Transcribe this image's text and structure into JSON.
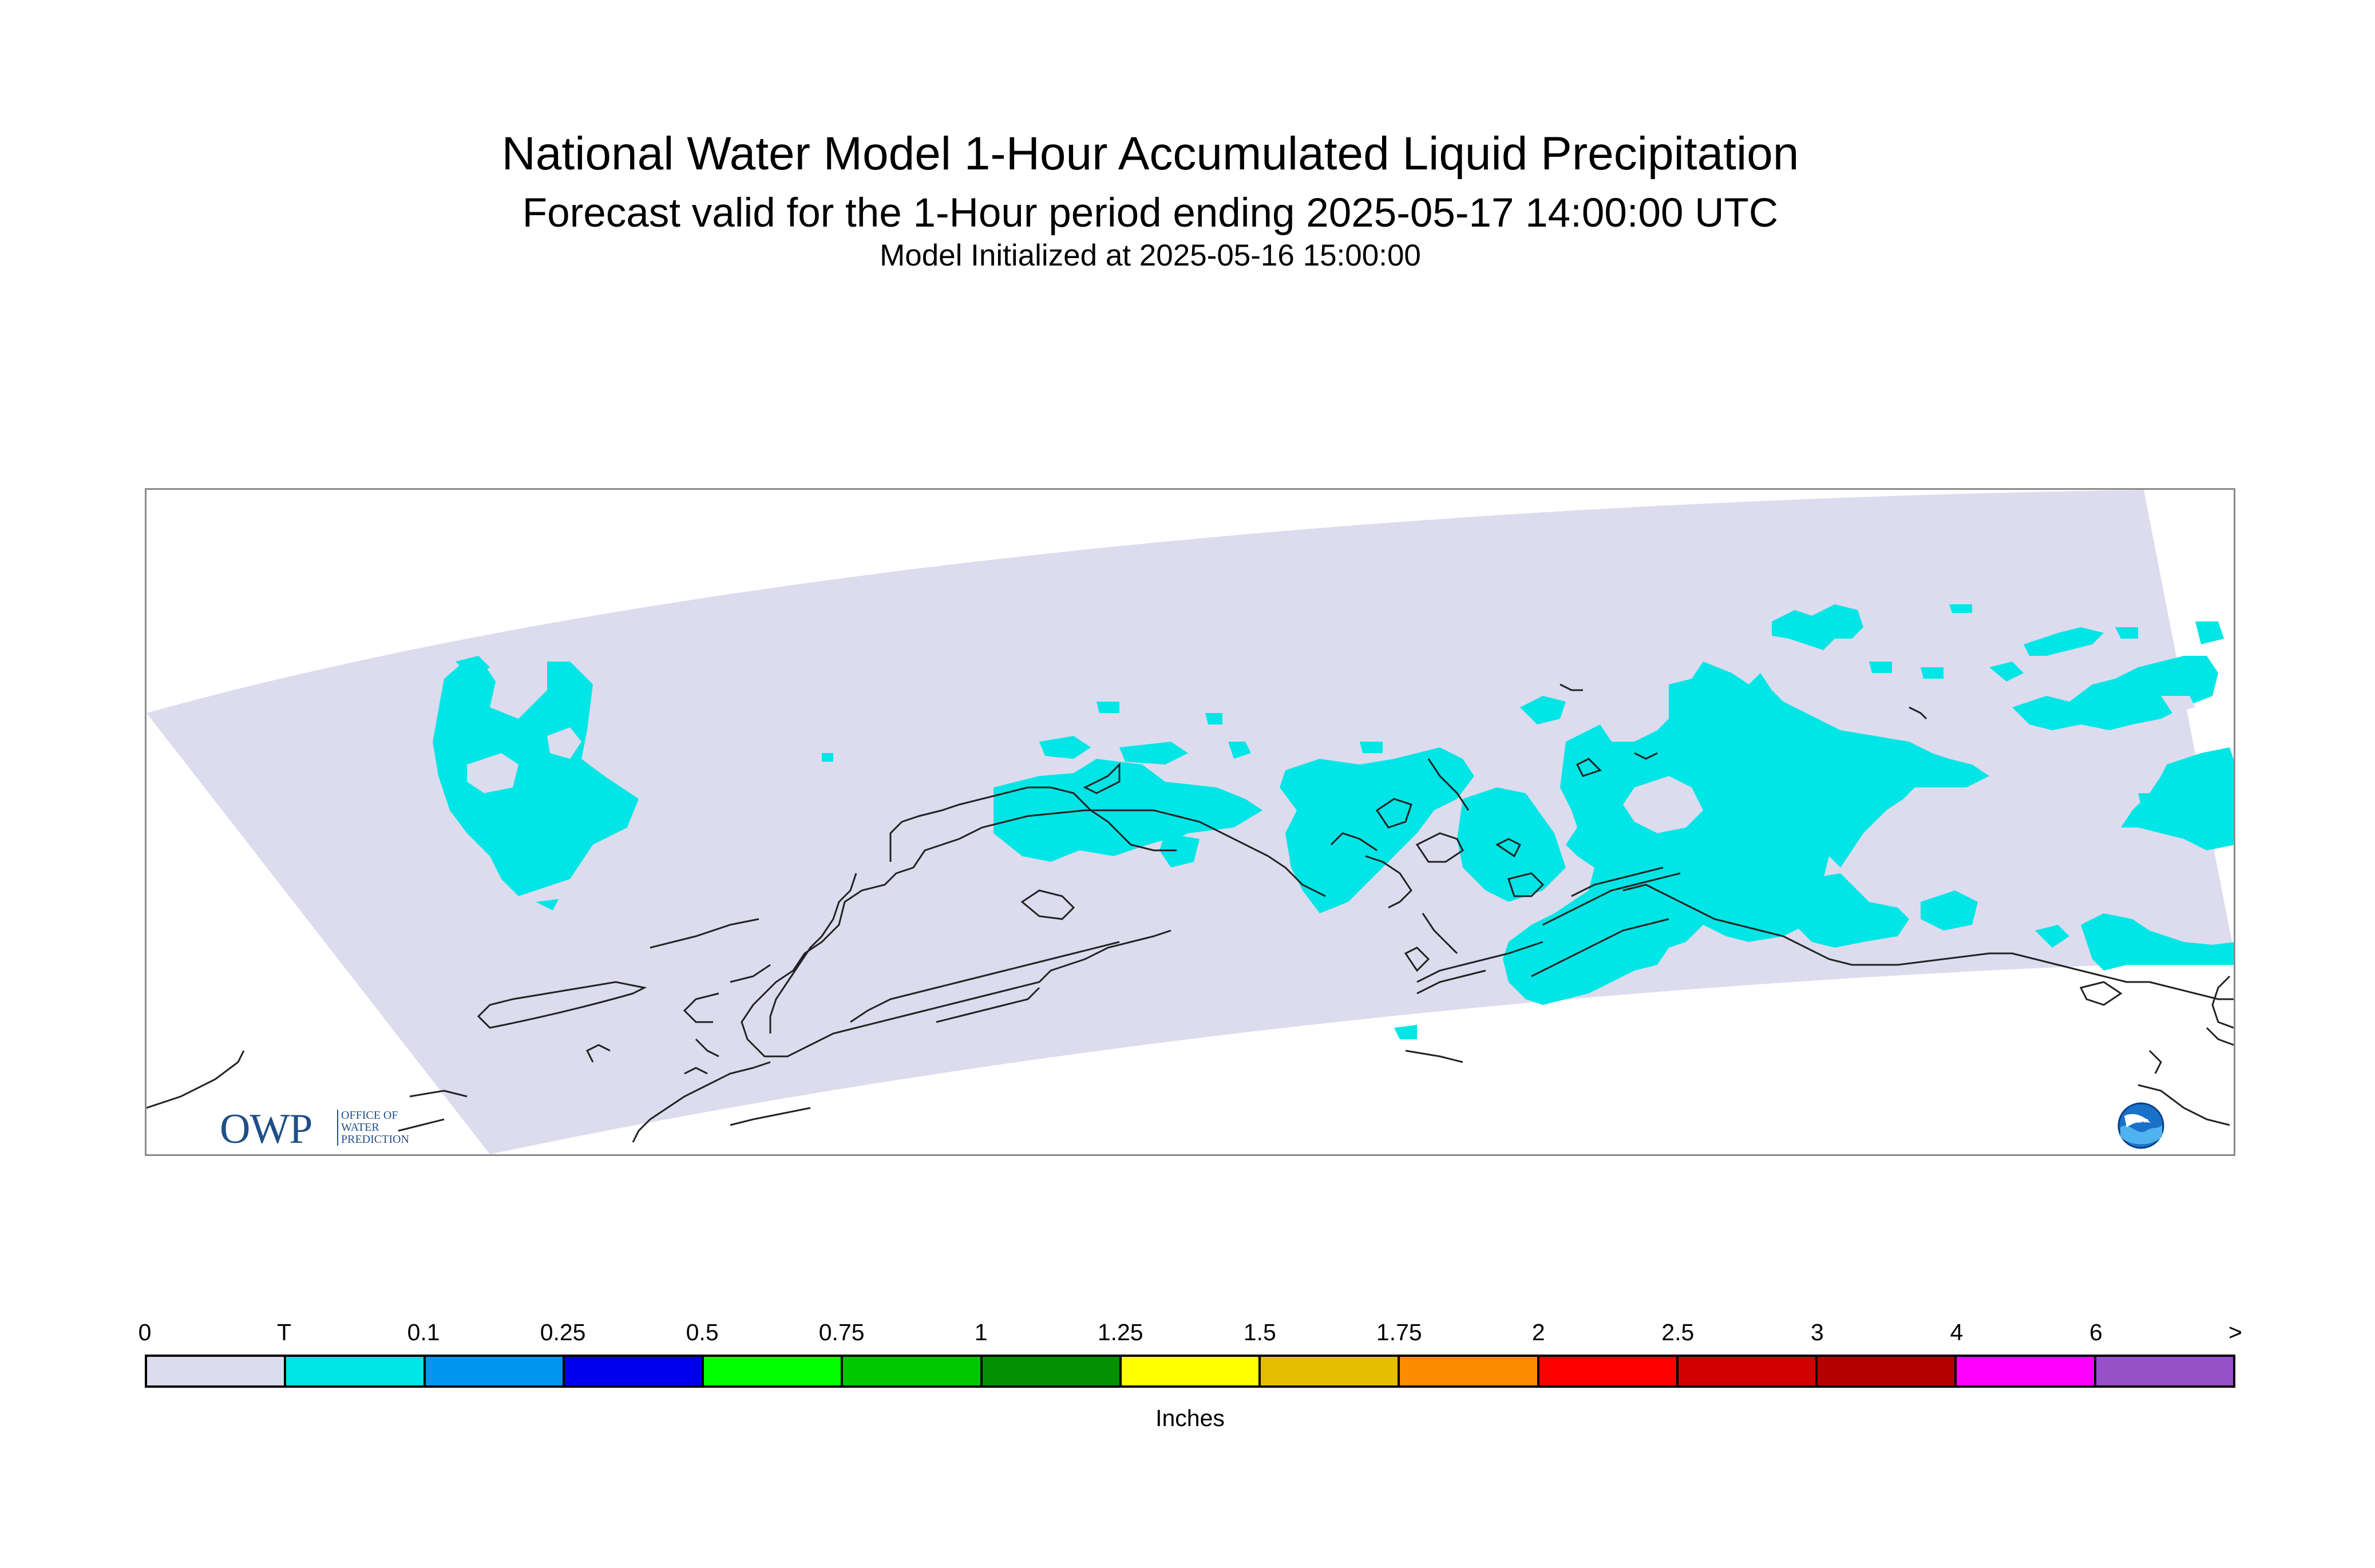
{
  "header": {
    "title": "National Water Model 1-Hour Accumulated Liquid Precipitation",
    "subtitle": "Forecast valid for the 1-Hour period ending 2025-05-17 14:00:00 UTC",
    "init_line": "Model Initialized at 2025-05-16 15:00:00"
  },
  "logos": {
    "owp_main": "OWP",
    "owp_sub": "OFFICE OF\nWATER\nPREDICTION",
    "noaa_label": "NOAA"
  },
  "colors": {
    "domain_fill": "#dcdcee",
    "trace_fill": "#00e5e5",
    "coastline": "#000000"
  },
  "legend": {
    "unit_label": "Inches",
    "tick_labels": [
      "0",
      "T",
      "0.1",
      "0.25",
      "0.5",
      "0.75",
      "1",
      "1.25",
      "1.5",
      "1.75",
      "2",
      "2.5",
      "3",
      "4",
      "6",
      ">"
    ],
    "bins": [
      {
        "label": "0 to T",
        "color": "#dcdcee"
      },
      {
        "label": "T to 0.1",
        "color": "#00e5e5"
      },
      {
        "label": "0.1 to 0.25",
        "color": "#0096f0"
      },
      {
        "label": "0.25 to 0.5",
        "color": "#0000ee"
      },
      {
        "label": "0.5 to 0.75",
        "color": "#00ff00"
      },
      {
        "label": "0.75 to 1",
        "color": "#00c800"
      },
      {
        "label": "1 to 1.25",
        "color": "#009000"
      },
      {
        "label": "1.25 to 1.5",
        "color": "#ffff00"
      },
      {
        "label": "1.5 to 1.75",
        "color": "#e6be00"
      },
      {
        "label": "1.75 to 2",
        "color": "#ff8c00"
      },
      {
        "label": "2 to 2.5",
        "color": "#ff0000"
      },
      {
        "label": "2.5 to 3",
        "color": "#d20000"
      },
      {
        "label": "3 to 4",
        "color": "#b40000"
      },
      {
        "label": "4 to 6",
        "color": "#ff00ff"
      },
      {
        "label": "6 to >",
        "color": "#9650c8"
      }
    ]
  }
}
